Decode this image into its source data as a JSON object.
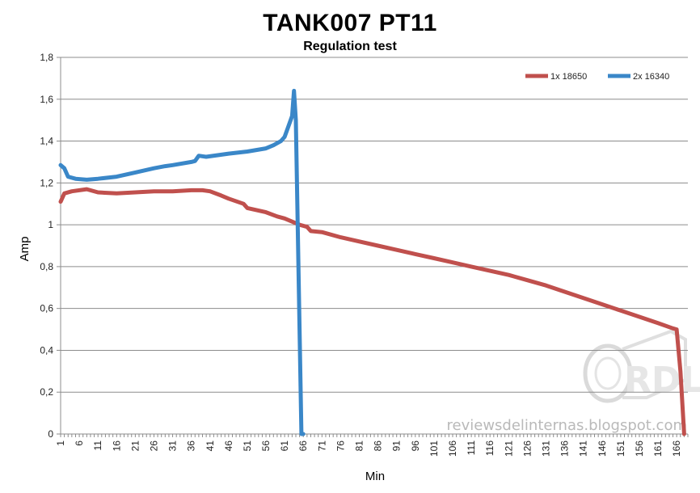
{
  "chart_data": {
    "type": "line",
    "title": "TANK007 PT11",
    "subtitle": "Regulation test",
    "xlabel": "Min",
    "ylabel": "Amp",
    "xlim": [
      1,
      169
    ],
    "ylim": [
      0,
      1.8
    ],
    "y_ticks": [
      "0",
      "0,2",
      "0,4",
      "0,6",
      "0,8",
      "1",
      "1,2",
      "1,4",
      "1,6",
      "1,8"
    ],
    "y_tick_values": [
      0,
      0.2,
      0.4,
      0.6,
      0.8,
      1.0,
      1.2,
      1.4,
      1.6,
      1.8
    ],
    "x_tick_values": [
      1,
      6,
      11,
      16,
      21,
      26,
      31,
      36,
      41,
      46,
      51,
      56,
      61,
      66,
      71,
      76,
      81,
      86,
      91,
      96,
      101,
      106,
      111,
      116,
      121,
      126,
      131,
      136,
      141,
      146,
      151,
      156,
      161,
      166
    ],
    "x_tick_labels": [
      "1",
      "6",
      "11",
      "16",
      "21",
      "26",
      "31",
      "36",
      "41",
      "46",
      "51",
      "56",
      "61",
      "66",
      "71",
      "76",
      "81",
      "86",
      "91",
      "96",
      "101",
      "106",
      "111",
      "116",
      "121",
      "126",
      "131",
      "136",
      "141",
      "146",
      "151",
      "156",
      "161",
      "166"
    ],
    "grid": true,
    "legend_position": "top-right",
    "series": [
      {
        "name": "1x 18650",
        "color": "#c0504d",
        "points": [
          [
            1,
            1.11
          ],
          [
            2,
            1.15
          ],
          [
            4,
            1.16
          ],
          [
            8,
            1.17
          ],
          [
            11,
            1.155
          ],
          [
            16,
            1.15
          ],
          [
            21,
            1.155
          ],
          [
            26,
            1.16
          ],
          [
            31,
            1.16
          ],
          [
            36,
            1.165
          ],
          [
            39,
            1.165
          ],
          [
            41,
            1.16
          ],
          [
            44,
            1.14
          ],
          [
            46,
            1.125
          ],
          [
            50,
            1.1
          ],
          [
            51,
            1.08
          ],
          [
            56,
            1.06
          ],
          [
            59,
            1.04
          ],
          [
            61,
            1.03
          ],
          [
            65,
            1.0
          ],
          [
            67,
            0.99
          ],
          [
            68,
            0.97
          ],
          [
            71,
            0.965
          ],
          [
            76,
            0.94
          ],
          [
            81,
            0.92
          ],
          [
            86,
            0.9
          ],
          [
            91,
            0.88
          ],
          [
            96,
            0.86
          ],
          [
            101,
            0.84
          ],
          [
            106,
            0.82
          ],
          [
            111,
            0.8
          ],
          [
            116,
            0.78
          ],
          [
            121,
            0.76
          ],
          [
            126,
            0.735
          ],
          [
            131,
            0.71
          ],
          [
            136,
            0.68
          ],
          [
            141,
            0.65
          ],
          [
            146,
            0.62
          ],
          [
            151,
            0.59
          ],
          [
            156,
            0.56
          ],
          [
            161,
            0.53
          ],
          [
            165,
            0.505
          ],
          [
            166,
            0.5
          ],
          [
            167,
            0.3
          ],
          [
            168,
            0.0
          ]
        ]
      },
      {
        "name": "2x 16340",
        "color": "#3a87c8",
        "points": [
          [
            1,
            1.285
          ],
          [
            2,
            1.27
          ],
          [
            3,
            1.23
          ],
          [
            5,
            1.22
          ],
          [
            8,
            1.215
          ],
          [
            11,
            1.22
          ],
          [
            16,
            1.23
          ],
          [
            21,
            1.25
          ],
          [
            26,
            1.27
          ],
          [
            29,
            1.28
          ],
          [
            31,
            1.285
          ],
          [
            36,
            1.3
          ],
          [
            37,
            1.305
          ],
          [
            38,
            1.33
          ],
          [
            40,
            1.325
          ],
          [
            46,
            1.34
          ],
          [
            51,
            1.35
          ],
          [
            56,
            1.365
          ],
          [
            58,
            1.38
          ],
          [
            60,
            1.4
          ],
          [
            61,
            1.42
          ],
          [
            62,
            1.47
          ],
          [
            63,
            1.52
          ],
          [
            63.5,
            1.64
          ],
          [
            64,
            1.5
          ],
          [
            64.5,
            1.0
          ],
          [
            65,
            0.5
          ],
          [
            65.5,
            0.0
          ],
          [
            66,
            0.0
          ]
        ]
      }
    ]
  },
  "watermark": {
    "text": "reviewsdelinternas.blogspot.com",
    "logo_text": "RDL"
  }
}
